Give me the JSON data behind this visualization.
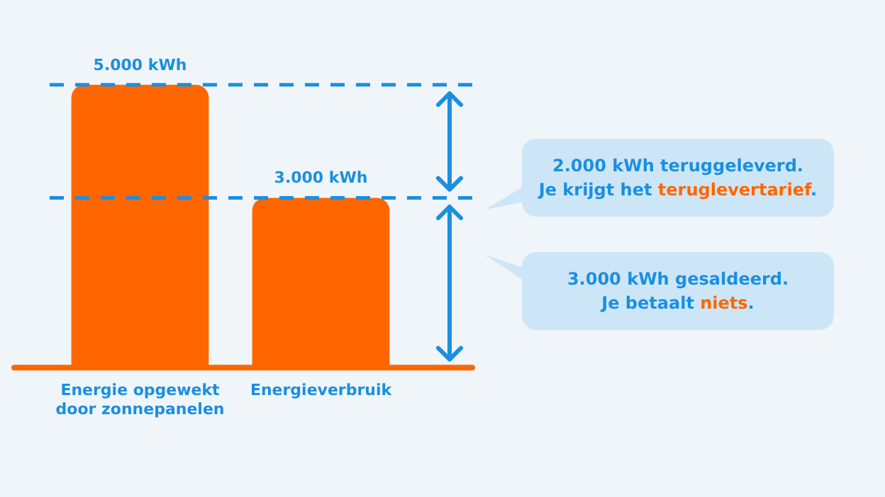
{
  "chart_data": {
    "type": "bar",
    "categories": [
      "Energie opgewekt door zonnepanelen",
      "Energieverbruik"
    ],
    "values": [
      5000,
      3000
    ],
    "value_labels": [
      "5.000 kWh",
      "3.000 kWh"
    ],
    "color": "#ff6600",
    "ref_lines": [
      {
        "axis": "y",
        "value": 5000,
        "color": "#1a8fe0",
        "line_style": "dashed"
      },
      {
        "axis": "y",
        "value": 3000,
        "color": "#1a8fe0",
        "line_style": "dashed"
      }
    ],
    "annotations": [
      "2.000 kWh teruggeleverd.\nJe krijgt het teruglevertarief.",
      "3.000 kWh gesaldeerd.\nJe betaalt niets."
    ],
    "tick_labels": "x",
    "grid": false,
    "legend": false
  }
}
